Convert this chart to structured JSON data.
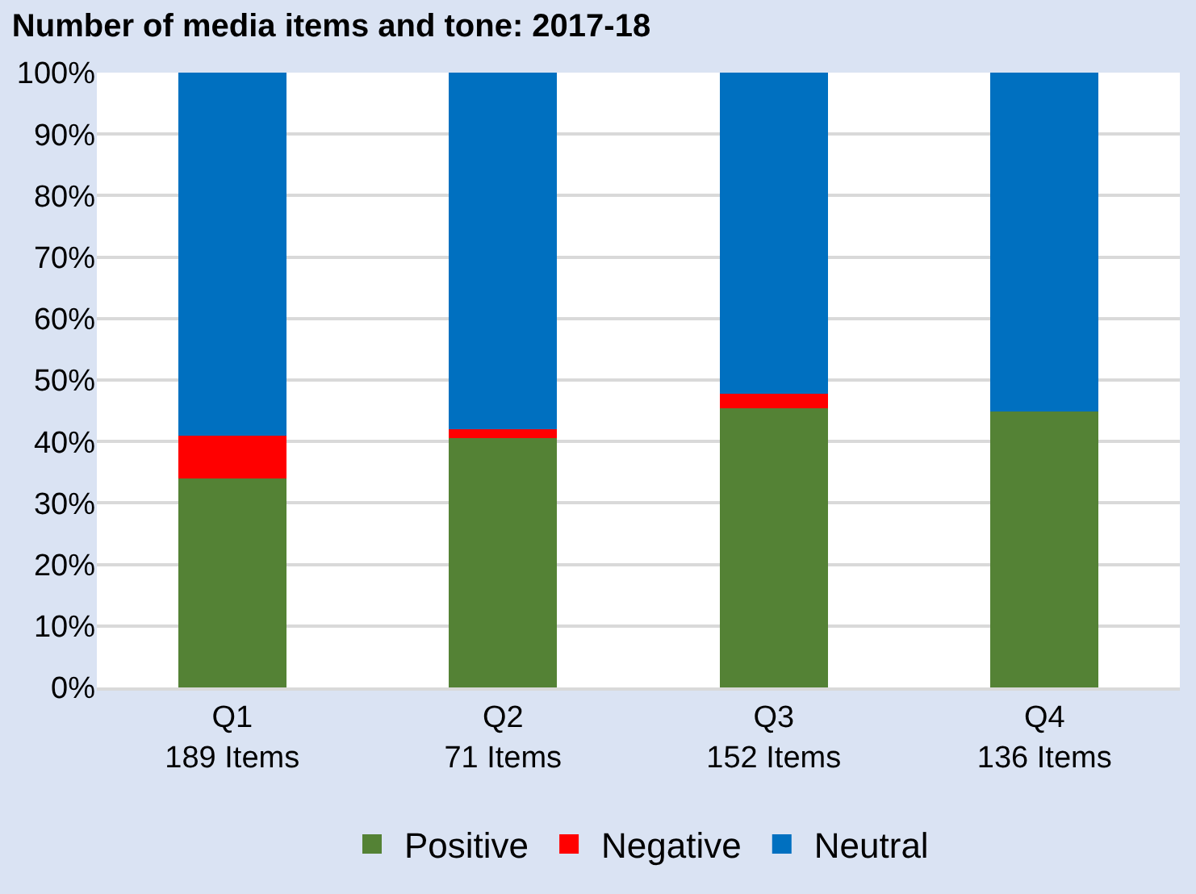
{
  "chart_data": {
    "type": "bar",
    "stacked": true,
    "title": "Number of media items and tone: 2017-18",
    "categories": [
      "Q1\n189 Items",
      "Q2\n71 Items",
      "Q3\n152 Items",
      "Q4\n136 Items"
    ],
    "series": [
      {
        "name": "Positive",
        "color": "#548235",
        "values": [
          34,
          40.6,
          45.4,
          44.9
        ]
      },
      {
        "name": "Negative",
        "color": "#ff0000",
        "values": [
          6.9,
          1.4,
          2.4,
          0
        ]
      },
      {
        "name": "Neutral",
        "color": "#0070c0",
        "values": [
          59.1,
          58,
          52.2,
          55.1
        ]
      }
    ],
    "ylim": [
      0,
      100
    ],
    "yticks": [
      {
        "value": 0,
        "label": "0%"
      },
      {
        "value": 10,
        "label": "10%"
      },
      {
        "value": 20,
        "label": "20%"
      },
      {
        "value": 30,
        "label": "30%"
      },
      {
        "value": 40,
        "label": "40%"
      },
      {
        "value": 50,
        "label": "50%"
      },
      {
        "value": 60,
        "label": "60%"
      },
      {
        "value": 70,
        "label": "70%"
      },
      {
        "value": 80,
        "label": "80%"
      },
      {
        "value": 90,
        "label": "90%"
      },
      {
        "value": 100,
        "label": "100%"
      }
    ],
    "grid": "y",
    "legend": "bottom"
  }
}
